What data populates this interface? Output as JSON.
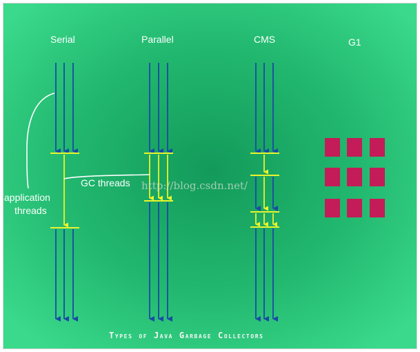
{
  "collectors": [
    {
      "name": "Serial"
    },
    {
      "name": "Parallel"
    },
    {
      "name": "CMS"
    },
    {
      "name": "G1"
    }
  ],
  "annotations": {
    "application_threads_line1": "application",
    "application_threads_line2": "threads",
    "gc_threads": "GC threads"
  },
  "footer": "Types of Java Garbage Collectors",
  "watermark": "http://blog.csdn.net/",
  "colors": {
    "background_center": "#139a5a",
    "background_edge": "#36d387",
    "application_thread": "#1a4aa6",
    "gc_thread": "#eaf42c",
    "region": "#c31c58",
    "text": "#ffffff"
  }
}
